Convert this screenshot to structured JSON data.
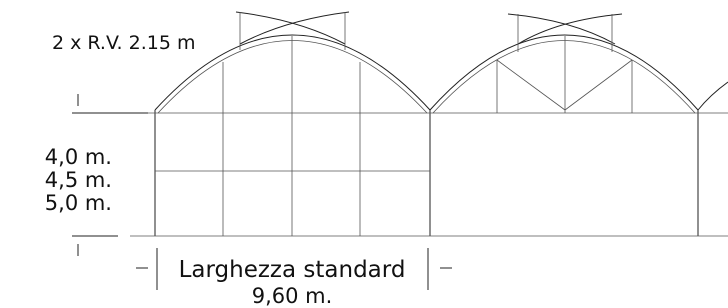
{
  "annotations": {
    "vents": "2 x R.V. 2.15 m",
    "heights": [
      "4,0 m.",
      "4,5 m.",
      "5,0 m."
    ],
    "width_label": "Larghezza standard",
    "width_value": "9,60 m."
  }
}
